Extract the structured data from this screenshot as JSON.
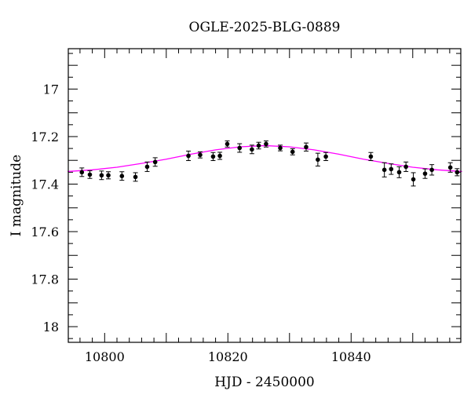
{
  "chart_data": {
    "type": "scatter",
    "title": "OGLE-2025-BLG-0889",
    "xlabel": "HJD - 2450000",
    "ylabel": "I magnitude",
    "xlim": [
      10794.1,
      10857.8
    ],
    "ylim": [
      18.066,
      16.83
    ],
    "y_inverted": true,
    "xticks": [
      10800,
      10820,
      10840
    ],
    "xtick_labels": [
      "10800",
      "10820",
      "10840"
    ],
    "yticks": [
      17,
      17.2,
      17.4,
      17.6,
      17.8,
      18
    ],
    "ytick_labels": [
      "17",
      "17.2",
      "17.4",
      "17.6",
      "17.8",
      "18"
    ],
    "grid": false,
    "colors": {
      "points": "#000000",
      "model": "#ff00ff"
    },
    "series": [
      {
        "kind": "points_with_errorbars",
        "x": [
          10796.3,
          10797.6,
          10799.5,
          10800.6,
          10802.8,
          10805.0,
          10806.9,
          10808.2,
          10813.6,
          10815.5,
          10817.6,
          10818.7,
          10819.9,
          10821.9,
          10823.9,
          10825.0,
          10826.2,
          10828.5,
          10830.5,
          10832.7,
          10834.6,
          10835.9,
          10843.2,
          10845.4,
          10846.5,
          10847.8,
          10848.9,
          10850.1,
          10852.0,
          10853.1,
          10856.1,
          10857.2
        ],
        "y": [
          17.35,
          17.36,
          17.363,
          17.363,
          17.366,
          17.37,
          17.327,
          17.307,
          17.281,
          17.277,
          17.284,
          17.281,
          17.231,
          17.248,
          17.254,
          17.238,
          17.231,
          17.248,
          17.264,
          17.244,
          17.297,
          17.284,
          17.284,
          17.34,
          17.337,
          17.35,
          17.327,
          17.38,
          17.356,
          17.34,
          17.33,
          17.35
        ],
        "err": [
          0.018,
          0.016,
          0.018,
          0.015,
          0.018,
          0.018,
          0.02,
          0.018,
          0.02,
          0.013,
          0.017,
          0.015,
          0.013,
          0.018,
          0.018,
          0.014,
          0.013,
          0.012,
          0.013,
          0.017,
          0.027,
          0.017,
          0.017,
          0.03,
          0.022,
          0.023,
          0.02,
          0.028,
          0.02,
          0.022,
          0.02,
          0.015
        ]
      },
      {
        "kind": "model_line",
        "x": [
          10794,
          10798,
          10802,
          10806,
          10810,
          10814,
          10818,
          10822,
          10826,
          10830,
          10834,
          10838,
          10842,
          10846,
          10850,
          10854,
          10858
        ],
        "y": [
          17.347,
          17.34,
          17.329,
          17.313,
          17.295,
          17.274,
          17.256,
          17.243,
          17.238,
          17.243,
          17.256,
          17.274,
          17.295,
          17.313,
          17.329,
          17.34,
          17.347
        ]
      }
    ]
  }
}
